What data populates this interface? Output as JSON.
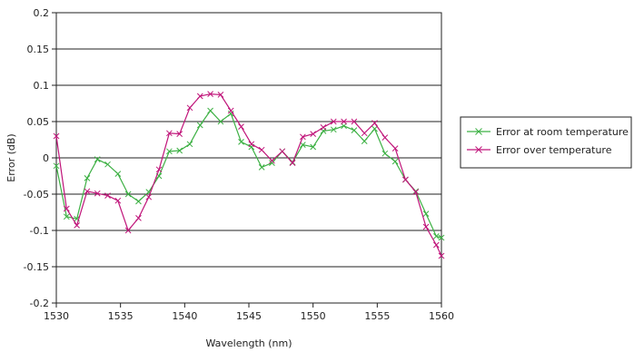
{
  "chart_data": {
    "type": "line",
    "xlabel": "Wavelength (nm)",
    "ylabel": "Error (dB)",
    "xlim": [
      1530,
      1560
    ],
    "ylim": [
      -0.2,
      0.2
    ],
    "x_ticks": [
      "1530",
      "1535",
      "1540",
      "1545",
      "1550",
      "1555",
      "1560"
    ],
    "y_ticks": [
      "0.2",
      "0.15",
      "0.1",
      "0.05",
      "0",
      "-0.05",
      "-0.1",
      "-0.15",
      "-0.2"
    ],
    "grid": "horizontal",
    "legend_position": "right",
    "x": [
      1530.0,
      1530.8,
      1531.6,
      1532.4,
      1533.2,
      1534.0,
      1534.8,
      1535.6,
      1536.4,
      1537.2,
      1538.0,
      1538.8,
      1539.6,
      1540.4,
      1541.2,
      1542.0,
      1542.8,
      1543.6,
      1544.4,
      1545.2,
      1546.0,
      1546.8,
      1547.6,
      1548.4,
      1549.2,
      1550.0,
      1550.8,
      1551.6,
      1552.4,
      1553.2,
      1554.0,
      1554.8,
      1555.6,
      1556.4,
      1557.2,
      1558.0,
      1558.8,
      1559.6,
      1560.0
    ],
    "series": [
      {
        "name": "Error at room temperature",
        "color": "#3cb043",
        "values": [
          -0.011,
          -0.081,
          -0.084,
          -0.028,
          -0.002,
          -0.009,
          -0.022,
          -0.05,
          -0.06,
          -0.047,
          -0.025,
          0.009,
          0.01,
          0.019,
          0.045,
          0.065,
          0.05,
          0.061,
          0.022,
          0.015,
          -0.013,
          -0.007,
          0.009,
          -0.006,
          0.018,
          0.015,
          0.037,
          0.039,
          0.044,
          0.038,
          0.023,
          0.04,
          0.006,
          -0.005,
          -0.03,
          -0.046,
          -0.077,
          -0.108,
          -0.11
        ]
      },
      {
        "name": "Error over temperature",
        "color": "#c0157a",
        "values": [
          0.03,
          -0.07,
          -0.093,
          -0.046,
          -0.049,
          -0.052,
          -0.059,
          -0.1,
          -0.083,
          -0.054,
          -0.016,
          0.034,
          0.033,
          0.069,
          0.085,
          0.088,
          0.087,
          0.065,
          0.043,
          0.019,
          0.011,
          -0.004,
          0.009,
          -0.007,
          0.029,
          0.033,
          0.042,
          0.05,
          0.05,
          0.05,
          0.034,
          0.048,
          0.028,
          0.013,
          -0.03,
          -0.047,
          -0.095,
          -0.12,
          -0.135
        ]
      }
    ]
  }
}
